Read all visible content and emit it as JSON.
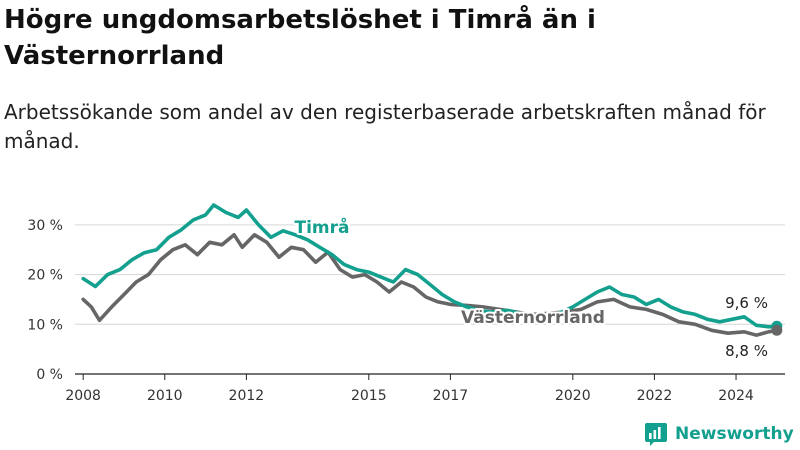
{
  "header": {
    "title": "Högre ungdomsarbetslöshet i Timrå än i Västernorrland",
    "subtitle": "Arbetssökande som andel av den registerbaserade arbetskraften månad för månad."
  },
  "brand": {
    "name": "Newsworthy",
    "color": "#14a08e"
  },
  "chart_data": {
    "type": "line",
    "ylim": [
      0,
      34
    ],
    "xlim": [
      2007.8,
      2025.2
    ],
    "y_ticks": [
      {
        "value": 0,
        "label": "0 %"
      },
      {
        "value": 10,
        "label": "10 %"
      },
      {
        "value": 20,
        "label": "20 %"
      },
      {
        "value": 30,
        "label": "30 %"
      }
    ],
    "x_ticks": [
      {
        "value": 2008,
        "label": "2008"
      },
      {
        "value": 2010,
        "label": "2010"
      },
      {
        "value": 2012,
        "label": "2012"
      },
      {
        "value": 2015,
        "label": "2015"
      },
      {
        "value": 2017,
        "label": "2017"
      },
      {
        "value": 2020,
        "label": "2020"
      },
      {
        "value": 2022,
        "label": "2022"
      },
      {
        "value": 2024,
        "label": "2024"
      }
    ],
    "grid": true,
    "series": [
      {
        "name": "Timrå",
        "color": "#14a08e",
        "end_label": "9,6 %",
        "points": [
          [
            2008.0,
            19.2
          ],
          [
            2008.3,
            17.6
          ],
          [
            2008.6,
            20.0
          ],
          [
            2008.9,
            21.0
          ],
          [
            2009.2,
            23.0
          ],
          [
            2009.5,
            24.4
          ],
          [
            2009.8,
            25.0
          ],
          [
            2010.1,
            27.5
          ],
          [
            2010.4,
            29.0
          ],
          [
            2010.7,
            31.0
          ],
          [
            2011.0,
            32.0
          ],
          [
            2011.2,
            34.0
          ],
          [
            2011.5,
            32.5
          ],
          [
            2011.8,
            31.5
          ],
          [
            2012.0,
            33.0
          ],
          [
            2012.3,
            30.0
          ],
          [
            2012.6,
            27.5
          ],
          [
            2012.9,
            28.8
          ],
          [
            2013.2,
            28.0
          ],
          [
            2013.5,
            27.0
          ],
          [
            2013.8,
            25.5
          ],
          [
            2014.1,
            24.0
          ],
          [
            2014.4,
            22.0
          ],
          [
            2014.7,
            21.0
          ],
          [
            2015.0,
            20.5
          ],
          [
            2015.3,
            19.5
          ],
          [
            2015.6,
            18.5
          ],
          [
            2015.9,
            21.0
          ],
          [
            2016.2,
            20.0
          ],
          [
            2016.5,
            18.0
          ],
          [
            2016.8,
            16.0
          ],
          [
            2017.1,
            14.5
          ],
          [
            2017.4,
            13.5
          ],
          [
            2017.7,
            12.8
          ],
          [
            2018.0,
            12.5
          ],
          [
            2018.4,
            12.8
          ],
          [
            2018.8,
            12.0
          ],
          [
            2019.2,
            11.5
          ],
          [
            2019.6,
            12.0
          ],
          [
            2020.0,
            13.5
          ],
          [
            2020.3,
            15.0
          ],
          [
            2020.6,
            16.5
          ],
          [
            2020.9,
            17.5
          ],
          [
            2021.2,
            16.0
          ],
          [
            2021.5,
            15.5
          ],
          [
            2021.8,
            14.0
          ],
          [
            2022.1,
            15.0
          ],
          [
            2022.4,
            13.5
          ],
          [
            2022.7,
            12.5
          ],
          [
            2023.0,
            12.0
          ],
          [
            2023.3,
            11.0
          ],
          [
            2023.6,
            10.5
          ],
          [
            2023.9,
            11.0
          ],
          [
            2024.2,
            11.5
          ],
          [
            2024.5,
            9.8
          ],
          [
            2024.8,
            9.5
          ],
          [
            2025.0,
            9.6
          ]
        ]
      },
      {
        "name": "Västernorrland",
        "color": "#666666",
        "end_label": "8,8 %",
        "points": [
          [
            2008.0,
            15.0
          ],
          [
            2008.2,
            13.5
          ],
          [
            2008.4,
            10.8
          ],
          [
            2008.7,
            13.5
          ],
          [
            2009.0,
            16.0
          ],
          [
            2009.3,
            18.5
          ],
          [
            2009.6,
            20.0
          ],
          [
            2009.9,
            23.0
          ],
          [
            2010.2,
            25.0
          ],
          [
            2010.5,
            26.0
          ],
          [
            2010.8,
            24.0
          ],
          [
            2011.1,
            26.5
          ],
          [
            2011.4,
            26.0
          ],
          [
            2011.7,
            28.0
          ],
          [
            2011.9,
            25.5
          ],
          [
            2012.2,
            28.0
          ],
          [
            2012.5,
            26.5
          ],
          [
            2012.8,
            23.5
          ],
          [
            2013.1,
            25.5
          ],
          [
            2013.4,
            25.0
          ],
          [
            2013.7,
            22.5
          ],
          [
            2014.0,
            24.5
          ],
          [
            2014.3,
            21.0
          ],
          [
            2014.6,
            19.5
          ],
          [
            2014.9,
            20.0
          ],
          [
            2015.2,
            18.5
          ],
          [
            2015.5,
            16.5
          ],
          [
            2015.8,
            18.5
          ],
          [
            2016.1,
            17.5
          ],
          [
            2016.4,
            15.5
          ],
          [
            2016.7,
            14.5
          ],
          [
            2017.0,
            14.0
          ],
          [
            2017.4,
            13.8
          ],
          [
            2017.8,
            13.5
          ],
          [
            2018.2,
            13.0
          ],
          [
            2018.6,
            12.5
          ],
          [
            2019.0,
            12.0
          ],
          [
            2019.4,
            12.2
          ],
          [
            2019.8,
            12.5
          ],
          [
            2020.2,
            13.0
          ],
          [
            2020.6,
            14.5
          ],
          [
            2021.0,
            15.0
          ],
          [
            2021.4,
            13.5
          ],
          [
            2021.8,
            13.0
          ],
          [
            2022.2,
            12.0
          ],
          [
            2022.6,
            10.5
          ],
          [
            2023.0,
            10.0
          ],
          [
            2023.4,
            8.8
          ],
          [
            2023.8,
            8.2
          ],
          [
            2024.2,
            8.5
          ],
          [
            2024.5,
            7.8
          ],
          [
            2024.8,
            8.5
          ],
          [
            2025.0,
            8.8
          ]
        ]
      }
    ]
  }
}
